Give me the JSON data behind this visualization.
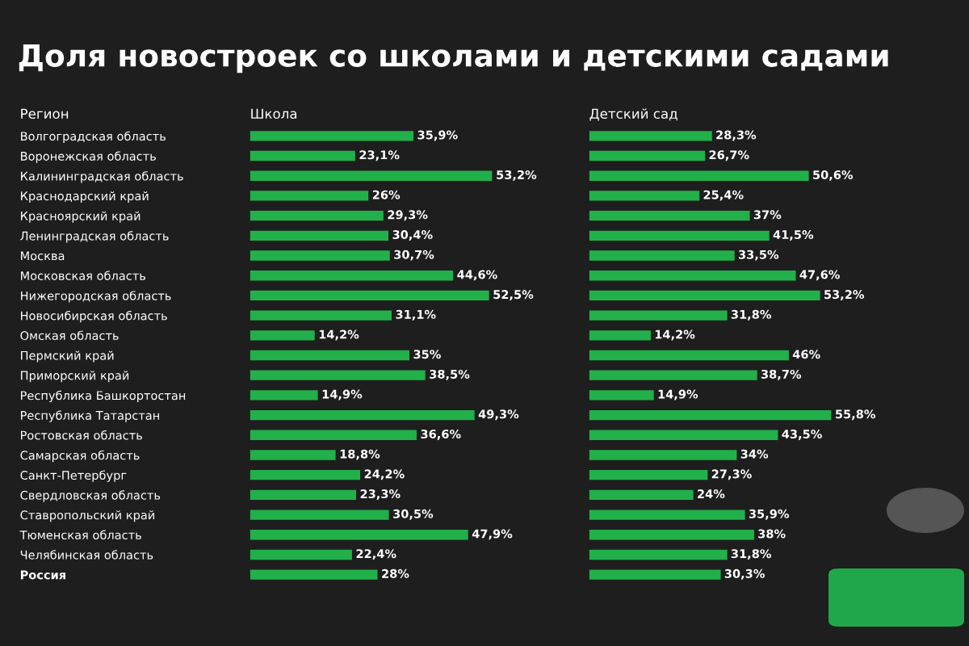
{
  "chart_data": [
    {
      "type": "bar",
      "orientation": "horizontal",
      "title": "Доля новостроек со школами и детскими садами",
      "subtitle": "Школа",
      "ylabel": "Регион",
      "categories": [
        "Волгоградская область",
        "Воронежская область",
        "Калининградская область",
        "Краснодарский край",
        "Красноярский край",
        "Ленинградская область",
        "Москва",
        "Московская область",
        "Нижегородская область",
        "Новосибирская область",
        "Омская область",
        "Пермский край",
        "Приморский край",
        "Республика Башкортостан",
        "Республика Татарстан",
        "Ростовская область",
        "Самарская область",
        "Санкт-Петербург",
        "Свердловская область",
        "Ставропольский край",
        "Тюменская область",
        "Челябинская область",
        "Россия"
      ],
      "values": [
        35.9,
        23.1,
        53.2,
        26,
        29.3,
        30.4,
        30.7,
        44.6,
        52.5,
        31.1,
        14.2,
        35,
        38.5,
        14.9,
        49.3,
        36.6,
        18.8,
        24.2,
        23.3,
        30.5,
        47.9,
        22.4,
        28
      ],
      "value_labels": [
        "35,9%",
        "23,1%",
        "53,2%",
        "26%",
        "29,3%",
        "30,4%",
        "30,7%",
        "44,6%",
        "52,5%",
        "31,1%",
        "14,2%",
        "35%",
        "38,5%",
        "14,9%",
        "49,3%",
        "36,6%",
        "18,8%",
        "24,2%",
        "23,3%",
        "30,5%",
        "47,9%",
        "22,4%",
        "28%"
      ],
      "color": "#22b04a",
      "tick_labels": "y",
      "grid": false,
      "legend": false
    },
    {
      "type": "bar",
      "orientation": "horizontal",
      "subtitle": "Детский сад",
      "categories": [
        null,
        null,
        null,
        null,
        null,
        null,
        null,
        null,
        null,
        null,
        null,
        null,
        null,
        null,
        null,
        null,
        null,
        null,
        null,
        null,
        null,
        null,
        null
      ],
      "values": [
        28.3,
        26.7,
        50.6,
        25.4,
        37,
        41.5,
        33.5,
        47.6,
        53.2,
        31.8,
        14.2,
        46,
        38.7,
        14.9,
        55.8,
        43.5,
        34,
        27.3,
        24,
        35.9,
        38,
        31.8,
        30.3
      ],
      "value_labels": [
        "28,3%",
        "26,7%",
        "50,6%",
        "25,4%",
        "37%",
        "41,5%",
        "33,5%",
        "47,6%",
        "53,2%",
        "31,8%",
        "14,2%",
        "46%",
        "38,7%",
        "14,9%",
        "55,8%",
        "43,5%",
        "34%",
        "27,3%",
        "24%",
        "35,9%",
        "38%",
        "31,8%",
        "30,3%"
      ],
      "color": "#22b04a",
      "tick_labels": false,
      "grid": false,
      "legend": false
    }
  ]
}
